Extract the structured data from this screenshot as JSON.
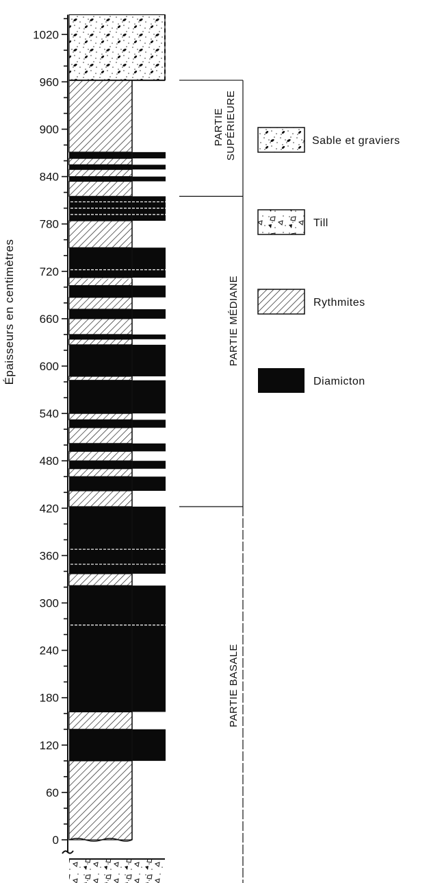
{
  "axis": {
    "title": "Épaisseurs   en   centimètres",
    "ticks": [
      "0",
      "60",
      "120",
      "180",
      "240",
      "300",
      "360",
      "420",
      "480",
      "540",
      "600",
      "660",
      "720",
      "780",
      "840",
      "900",
      "960",
      "1020"
    ]
  },
  "zones": {
    "superieure": [
      "PARTIE",
      "SUPÉRIEURE"
    ],
    "mediane": "PARTIE MÉDIANE",
    "basale": "PARTIE BASALE"
  },
  "legend": {
    "sable": "Sable et graviers",
    "till": "Till",
    "rythmites": "Rythmites",
    "diamicton": "Diamicton"
  },
  "column_data": {
    "unit": "cm",
    "base_gap": "till below 0 (axis break)",
    "layers": [
      {
        "from": 0,
        "to": 100,
        "type": "rythmites"
      },
      {
        "from": 100,
        "to": 140,
        "type": "diamicton"
      },
      {
        "from": 140,
        "to": 162,
        "type": "rythmites"
      },
      {
        "from": 162,
        "to": 322,
        "type": "diamicton"
      },
      {
        "from": 322,
        "to": 337,
        "type": "rythmites"
      },
      {
        "from": 337,
        "to": 422,
        "type": "diamicton"
      },
      {
        "from": 422,
        "to": 442,
        "type": "rythmites"
      },
      {
        "from": 442,
        "to": 460,
        "type": "diamicton"
      },
      {
        "from": 460,
        "to": 470,
        "type": "rythmites"
      },
      {
        "from": 470,
        "to": 480,
        "type": "diamicton"
      },
      {
        "from": 480,
        "to": 492,
        "type": "rythmites"
      },
      {
        "from": 492,
        "to": 502,
        "type": "diamicton"
      },
      {
        "from": 502,
        "to": 522,
        "type": "rythmites"
      },
      {
        "from": 522,
        "to": 532,
        "type": "diamicton"
      },
      {
        "from": 532,
        "to": 540,
        "type": "rythmites"
      },
      {
        "from": 540,
        "to": 582,
        "type": "diamicton"
      },
      {
        "from": 582,
        "to": 587,
        "type": "rythmites"
      },
      {
        "from": 587,
        "to": 627,
        "type": "diamicton"
      },
      {
        "from": 627,
        "to": 634,
        "type": "rythmites"
      },
      {
        "from": 634,
        "to": 640,
        "type": "diamicton"
      },
      {
        "from": 640,
        "to": 660,
        "type": "rythmites"
      },
      {
        "from": 660,
        "to": 672,
        "type": "diamicton"
      },
      {
        "from": 672,
        "to": 687,
        "type": "rythmites"
      },
      {
        "from": 687,
        "to": 702,
        "type": "diamicton"
      },
      {
        "from": 702,
        "to": 712,
        "type": "rythmites"
      },
      {
        "from": 712,
        "to": 750,
        "type": "diamicton"
      },
      {
        "from": 750,
        "to": 784,
        "type": "rythmites"
      },
      {
        "from": 784,
        "to": 815,
        "type": "diamicton"
      },
      {
        "from": 815,
        "to": 834,
        "type": "rythmites"
      },
      {
        "from": 834,
        "to": 840,
        "type": "diamicton"
      },
      {
        "from": 840,
        "to": 849,
        "type": "rythmites"
      },
      {
        "from": 849,
        "to": 855,
        "type": "diamicton"
      },
      {
        "from": 855,
        "to": 863,
        "type": "rythmites"
      },
      {
        "from": 863,
        "to": 871,
        "type": "diamicton"
      },
      {
        "from": 871,
        "to": 962,
        "type": "rythmites"
      },
      {
        "from": 962,
        "to": 1045,
        "type": "sable"
      }
    ],
    "zone_boundaries": {
      "basale_top": 422,
      "mediane_top": 815,
      "superieure_top": 962
    }
  }
}
